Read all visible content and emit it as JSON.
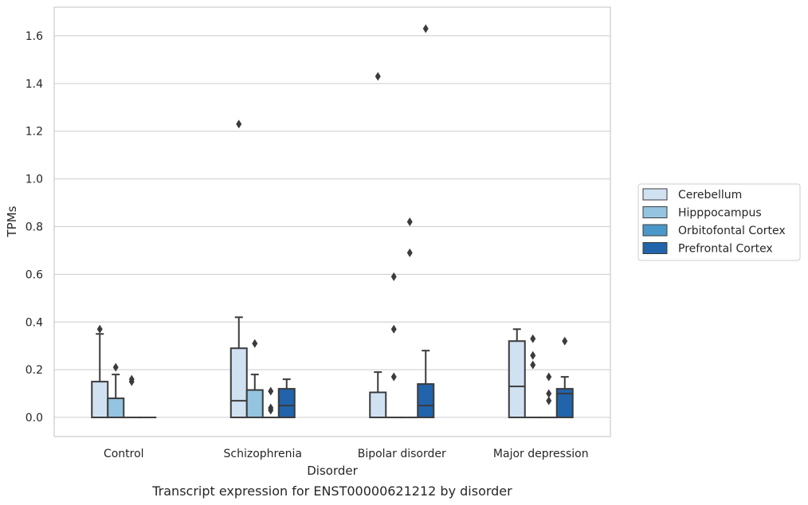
{
  "chart_data": {
    "type": "box",
    "caption": "Transcript expression for ENST00000621212 by disorder",
    "xlabel": "Disorder",
    "ylabel": "TPMs",
    "ylim": [
      -0.08,
      1.72
    ],
    "yticks": [
      0.0,
      0.2,
      0.4,
      0.6,
      0.8,
      1.0,
      1.2,
      1.4,
      1.6
    ],
    "ytick_labels": [
      "0.0",
      "0.2",
      "0.4",
      "0.6",
      "0.8",
      "1.0",
      "1.2",
      "1.4",
      "1.6"
    ],
    "grid": "horizontal",
    "legend_position": "right",
    "categories": [
      "Control",
      "Schizophrenia",
      "Bipolar disorder",
      "Major depression"
    ],
    "series": [
      {
        "name": "Cerebellum",
        "color": "#d0e1f2",
        "boxes": [
          {
            "q1": 0.0,
            "median": 0.0,
            "q3": 0.15,
            "whisker_low": 0.0,
            "whisker_high": 0.35,
            "outliers": [
              0.37
            ]
          },
          {
            "q1": 0.0,
            "median": 0.07,
            "q3": 0.29,
            "whisker_low": 0.0,
            "whisker_high": 0.42,
            "outliers": [
              1.23
            ]
          },
          {
            "q1": 0.0,
            "median": 0.0,
            "q3": 0.105,
            "whisker_low": 0.0,
            "whisker_high": 0.19,
            "outliers": [
              1.43
            ]
          },
          {
            "q1": 0.0,
            "median": 0.13,
            "q3": 0.32,
            "whisker_low": 0.0,
            "whisker_high": 0.37,
            "outliers": []
          }
        ]
      },
      {
        "name": "Hipppocampus",
        "color": "#94c4df",
        "boxes": [
          {
            "q1": 0.0,
            "median": 0.0,
            "q3": 0.08,
            "whisker_low": 0.0,
            "whisker_high": 0.18,
            "outliers": [
              0.21
            ]
          },
          {
            "q1": 0.0,
            "median": 0.0,
            "q3": 0.115,
            "whisker_low": 0.0,
            "whisker_high": 0.18,
            "outliers": [
              0.31
            ]
          },
          {
            "q1": 0.0,
            "median": 0.0,
            "q3": 0.0,
            "whisker_low": 0.0,
            "whisker_high": 0.0,
            "outliers": [
              0.17,
              0.37,
              0.59
            ]
          },
          {
            "q1": 0.0,
            "median": 0.0,
            "q3": 0.0,
            "whisker_low": 0.0,
            "whisker_high": 0.0,
            "outliers": [
              0.22,
              0.26,
              0.33
            ]
          }
        ]
      },
      {
        "name": "Orbitofontal Cortex",
        "color": "#4a98c9",
        "boxes": [
          {
            "q1": 0.0,
            "median": 0.0,
            "q3": 0.0,
            "whisker_low": 0.0,
            "whisker_high": 0.0,
            "outliers": [
              0.15,
              0.16
            ]
          },
          {
            "q1": 0.0,
            "median": 0.0,
            "q3": 0.0,
            "whisker_low": 0.0,
            "whisker_high": 0.0,
            "outliers": [
              0.03,
              0.04,
              0.11
            ]
          },
          {
            "q1": 0.0,
            "median": 0.0,
            "q3": 0.0,
            "whisker_low": 0.0,
            "whisker_high": 0.0,
            "outliers": [
              0.69,
              0.82
            ]
          },
          {
            "q1": 0.0,
            "median": 0.0,
            "q3": 0.0,
            "whisker_low": 0.0,
            "whisker_high": 0.0,
            "outliers": [
              0.07,
              0.1,
              0.17
            ]
          }
        ]
      },
      {
        "name": "Prefrontal Cortex",
        "color": "#2164ab",
        "boxes": [
          {
            "q1": 0.0,
            "median": 0.0,
            "q3": 0.0,
            "whisker_low": 0.0,
            "whisker_high": 0.0,
            "outliers": []
          },
          {
            "q1": 0.0,
            "median": 0.05,
            "q3": 0.12,
            "whisker_low": 0.0,
            "whisker_high": 0.16,
            "outliers": []
          },
          {
            "q1": 0.0,
            "median": 0.05,
            "q3": 0.14,
            "whisker_low": 0.0,
            "whisker_high": 0.28,
            "outliers": [
              1.63
            ]
          },
          {
            "q1": 0.0,
            "median": 0.1,
            "q3": 0.12,
            "whisker_low": 0.0,
            "whisker_high": 0.17,
            "outliers": [
              0.32
            ]
          }
        ]
      }
    ]
  }
}
